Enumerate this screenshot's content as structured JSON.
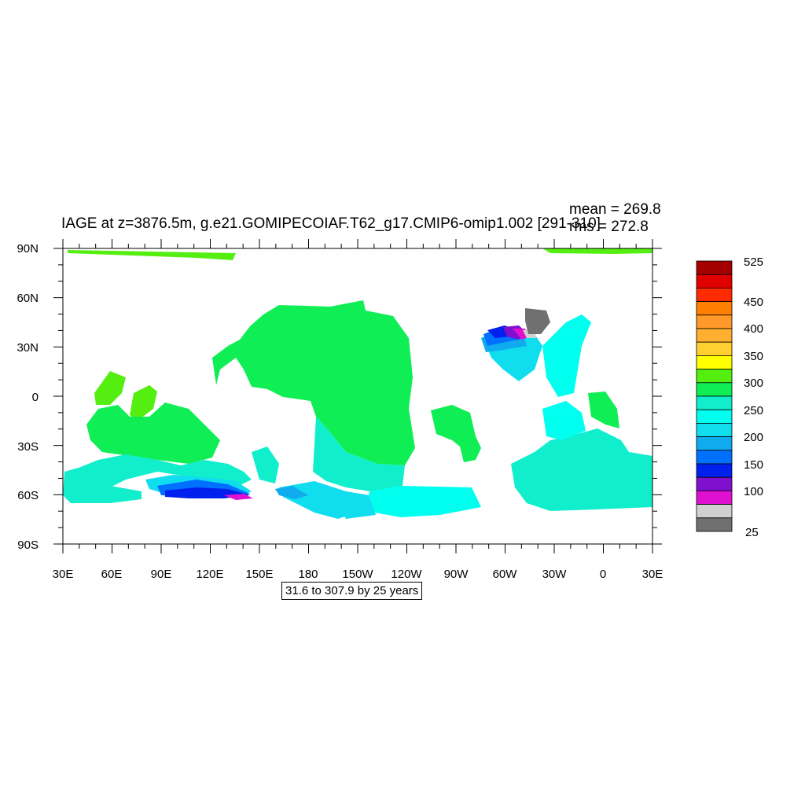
{
  "title": "IAGE at z=3876.5m, g.e21.GOMIPECOIAF.T62_g17.CMIP6-omip1.002 [291-310]",
  "stats": {
    "mean": "mean = 269.8",
    "rms": "rms = 272.8"
  },
  "contour_info": "31.6 to 307.9 by 25 years",
  "lat_labels": [
    "90N",
    "60N",
    "30N",
    "0",
    "30S",
    "60S",
    "90S"
  ],
  "lon_labels": [
    "30E",
    "60E",
    "90E",
    "120E",
    "150E",
    "180",
    "150W",
    "120W",
    "90W",
    "60W",
    "30W",
    "0",
    "30E"
  ],
  "colorbar": {
    "labels": [
      "525",
      "450",
      "400",
      "350",
      "300",
      "250",
      "200",
      "150",
      "100",
      "25"
    ],
    "colors": [
      "#a50000",
      "#e10000",
      "#ff2a00",
      "#ff7f00",
      "#ff9a2a",
      "#ffb030",
      "#ffd030",
      "#ffff00",
      "#55ee11",
      "#10ee55",
      "#10eecc",
      "#00ffee",
      "#10ddee",
      "#10aaee",
      "#0070ff",
      "#0020ee",
      "#8010d0",
      "#e010d0",
      "#d0d0d0",
      "#707070"
    ]
  },
  "map_legend": {
    "green": "#10ee55",
    "lime": "#55ee11",
    "aqua": "#10eecc",
    "cyan": "#00ffee",
    "sky": "#10ddee",
    "blue": "#10aaee",
    "azure": "#0070ff",
    "navy": "#0020ee",
    "purple": "#8010d0",
    "magenta": "#e010d0",
    "gray": "#707070",
    "lightgray": "#d0d0d0"
  }
}
